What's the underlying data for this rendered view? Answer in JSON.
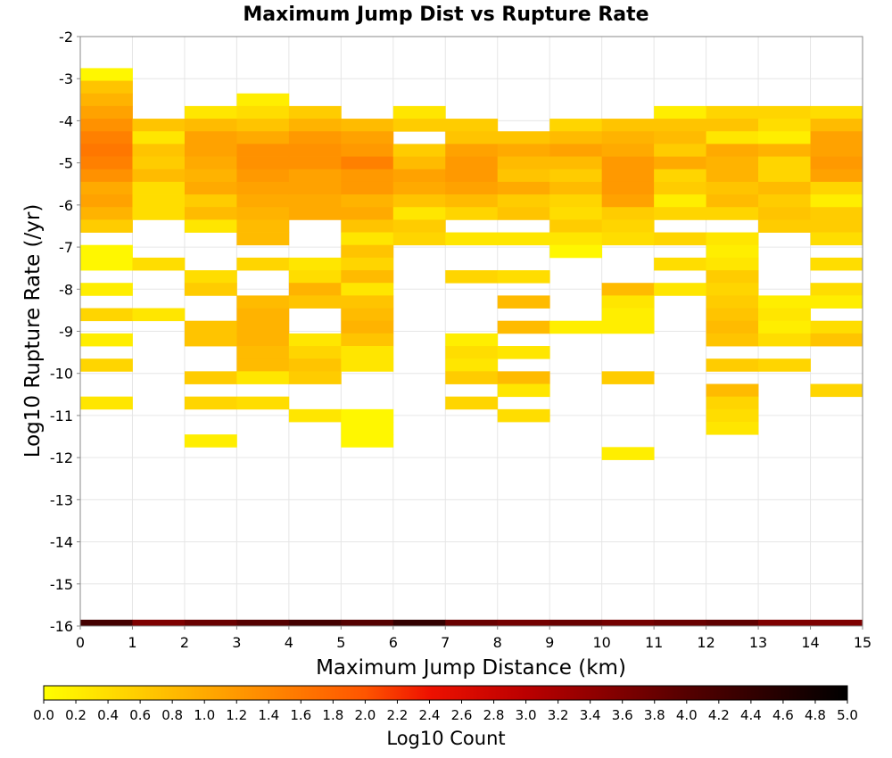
{
  "chart_data": {
    "type": "heatmap",
    "title": "Maximum Jump Dist vs Rupture Rate",
    "xlabel": "Maximum Jump Distance (km)",
    "ylabel": "Log10 Rupture Rate (/yr)",
    "xlim": [
      0,
      15
    ],
    "ylim": [
      -16,
      -2
    ],
    "x_ticks": [
      "0",
      "1",
      "2",
      "3",
      "4",
      "5",
      "6",
      "7",
      "8",
      "9",
      "10",
      "11",
      "12",
      "13",
      "14",
      "15"
    ],
    "y_ticks": [
      "-2",
      "-3",
      "-4",
      "-5",
      "-6",
      "-7",
      "-8",
      "-9",
      "-10",
      "-11",
      "-12",
      "-13",
      "-14",
      "-15",
      "-16"
    ],
    "bin_width_x": 1,
    "bin_height_y": 0.3,
    "grid": true,
    "colorbar": {
      "label": "Log10 Count",
      "range": [
        0,
        5
      ],
      "ticks": [
        "0.0",
        "0.2",
        "0.4",
        "0.6",
        "0.8",
        "1.0",
        "1.2",
        "1.4",
        "1.6",
        "1.8",
        "2.0",
        "2.2",
        "2.4",
        "2.6",
        "2.8",
        "3.0",
        "3.2",
        "3.4",
        "3.6",
        "3.8",
        "4.0",
        "4.2",
        "4.4",
        "4.6",
        "4.8",
        "5.0"
      ],
      "stops": [
        {
          "v": 0.0,
          "color": "#ffff00"
        },
        {
          "v": 1.0,
          "color": "#ffaa00"
        },
        {
          "v": 2.0,
          "color": "#ff5500"
        },
        {
          "v": 2.4,
          "color": "#ee1100"
        },
        {
          "v": 3.0,
          "color": "#bb0000"
        },
        {
          "v": 4.0,
          "color": "#550000"
        },
        {
          "v": 5.0,
          "color": "#000000"
        }
      ]
    },
    "columns": [
      {
        "x": 0,
        "cells": [
          [
            -2.9,
            0.1
          ],
          [
            -3.2,
            0.7
          ],
          [
            -3.5,
            0.9
          ],
          [
            -3.8,
            1.1
          ],
          [
            -4.1,
            1.3
          ],
          [
            -4.4,
            1.5
          ],
          [
            -4.7,
            1.6
          ],
          [
            -5.0,
            1.5
          ],
          [
            -5.3,
            1.3
          ],
          [
            -5.6,
            1.0
          ],
          [
            -5.9,
            1.1
          ],
          [
            -6.2,
            0.9
          ],
          [
            -6.5,
            0.6
          ],
          [
            -7.1,
            0.1
          ],
          [
            -7.4,
            0.1
          ],
          [
            -8.0,
            0.2
          ],
          [
            -8.6,
            0.5
          ],
          [
            -9.2,
            0.2
          ],
          [
            -9.8,
            0.5
          ],
          [
            -10.7,
            0.3
          ]
        ]
      },
      {
        "x": 1,
        "cells": [
          [
            -4.1,
            0.7
          ],
          [
            -4.4,
            0.3
          ],
          [
            -4.7,
            0.7
          ],
          [
            -5.0,
            0.6
          ],
          [
            -5.3,
            0.8
          ],
          [
            -5.6,
            0.4
          ],
          [
            -5.9,
            0.4
          ],
          [
            -6.2,
            0.4
          ],
          [
            -7.4,
            0.4
          ],
          [
            -8.6,
            0.3
          ]
        ]
      },
      {
        "x": 2,
        "cells": [
          [
            -3.8,
            0.3
          ],
          [
            -4.1,
            0.8
          ],
          [
            -4.4,
            1.1
          ],
          [
            -4.7,
            1.1
          ],
          [
            -5.0,
            1.0
          ],
          [
            -5.3,
            0.9
          ],
          [
            -5.6,
            1.0
          ],
          [
            -5.9,
            0.6
          ],
          [
            -6.2,
            0.8
          ],
          [
            -6.5,
            0.3
          ],
          [
            -7.7,
            0.4
          ],
          [
            -8.0,
            0.6
          ],
          [
            -8.9,
            0.7
          ],
          [
            -9.2,
            0.7
          ],
          [
            -10.1,
            0.6
          ],
          [
            -10.7,
            0.5
          ],
          [
            -11.6,
            0.2
          ]
        ]
      },
      {
        "x": 3,
        "cells": [
          [
            -3.5,
            0.2
          ],
          [
            -3.8,
            0.4
          ],
          [
            -4.1,
            0.7
          ],
          [
            -4.4,
            1.0
          ],
          [
            -4.7,
            1.3
          ],
          [
            -5.0,
            1.3
          ],
          [
            -5.3,
            1.2
          ],
          [
            -5.6,
            1.1
          ],
          [
            -5.9,
            1.0
          ],
          [
            -6.2,
            0.9
          ],
          [
            -6.5,
            0.8
          ],
          [
            -6.8,
            0.8
          ],
          [
            -7.4,
            0.5
          ],
          [
            -8.3,
            0.8
          ],
          [
            -8.6,
            0.9
          ],
          [
            -8.9,
            0.9
          ],
          [
            -9.2,
            0.9
          ],
          [
            -9.5,
            0.8
          ],
          [
            -9.8,
            0.8
          ],
          [
            -10.1,
            0.3
          ],
          [
            -10.7,
            0.4
          ]
        ]
      },
      {
        "x": 4,
        "cells": [
          [
            -3.8,
            0.6
          ],
          [
            -4.1,
            0.9
          ],
          [
            -4.4,
            1.2
          ],
          [
            -4.7,
            1.3
          ],
          [
            -5.0,
            1.3
          ],
          [
            -5.3,
            1.1
          ],
          [
            -5.6,
            1.1
          ],
          [
            -5.9,
            1.0
          ],
          [
            -6.2,
            1.0
          ],
          [
            -7.4,
            0.3
          ],
          [
            -7.7,
            0.4
          ],
          [
            -8.0,
            0.9
          ],
          [
            -8.3,
            0.7
          ],
          [
            -9.2,
            0.3
          ],
          [
            -9.5,
            0.5
          ],
          [
            -9.8,
            0.7
          ],
          [
            -10.1,
            0.6
          ],
          [
            -11.0,
            0.3
          ]
        ]
      },
      {
        "x": 5,
        "cells": [
          [
            -4.1,
            0.8
          ],
          [
            -4.4,
            1.1
          ],
          [
            -4.7,
            1.2
          ],
          [
            -5.0,
            1.5
          ],
          [
            -5.3,
            1.2
          ],
          [
            -5.6,
            1.2
          ],
          [
            -5.9,
            0.9
          ],
          [
            -6.2,
            1.0
          ],
          [
            -6.5,
            0.7
          ],
          [
            -6.8,
            0.3
          ],
          [
            -7.1,
            0.7
          ],
          [
            -7.4,
            0.5
          ],
          [
            -7.7,
            0.8
          ],
          [
            -8.0,
            0.3
          ],
          [
            -8.3,
            0.7
          ],
          [
            -8.6,
            0.8
          ],
          [
            -8.9,
            0.9
          ],
          [
            -9.2,
            0.7
          ],
          [
            -9.5,
            0.3
          ],
          [
            -9.8,
            0.3
          ],
          [
            -11.0,
            0.1
          ],
          [
            -11.3,
            0.1
          ],
          [
            -11.6,
            0.1
          ]
        ]
      },
      {
        "x": 6,
        "cells": [
          [
            -3.8,
            0.3
          ],
          [
            -4.1,
            0.6
          ],
          [
            -4.7,
            0.6
          ],
          [
            -5.0,
            0.8
          ],
          [
            -5.3,
            1.1
          ],
          [
            -5.6,
            1.0
          ],
          [
            -5.9,
            0.7
          ],
          [
            -6.2,
            0.3
          ],
          [
            -6.5,
            0.6
          ],
          [
            -6.8,
            0.5
          ]
        ]
      },
      {
        "x": 7,
        "cells": [
          [
            -4.1,
            0.6
          ],
          [
            -4.4,
            0.7
          ],
          [
            -4.7,
            1.1
          ],
          [
            -5.0,
            1.2
          ],
          [
            -5.3,
            1.2
          ],
          [
            -5.6,
            1.1
          ],
          [
            -5.9,
            0.8
          ],
          [
            -6.2,
            0.5
          ],
          [
            -6.8,
            0.3
          ],
          [
            -7.7,
            0.5
          ],
          [
            -9.2,
            0.2
          ],
          [
            -9.5,
            0.4
          ],
          [
            -9.8,
            0.3
          ],
          [
            -10.1,
            0.6
          ],
          [
            -10.7,
            0.5
          ]
        ]
      },
      {
        "x": 8,
        "cells": [
          [
            -4.4,
            0.7
          ],
          [
            -4.7,
            1.0
          ],
          [
            -5.0,
            0.8
          ],
          [
            -5.3,
            0.7
          ],
          [
            -5.6,
            1.0
          ],
          [
            -5.9,
            0.6
          ],
          [
            -6.2,
            0.7
          ],
          [
            -6.8,
            0.3
          ],
          [
            -7.7,
            0.4
          ],
          [
            -8.3,
            0.8
          ],
          [
            -8.9,
            0.8
          ],
          [
            -9.5,
            0.3
          ],
          [
            -10.1,
            0.8
          ],
          [
            -10.4,
            0.3
          ],
          [
            -11.0,
            0.4
          ]
        ]
      },
      {
        "x": 9,
        "cells": [
          [
            -4.1,
            0.5
          ],
          [
            -4.4,
            0.8
          ],
          [
            -4.7,
            1.1
          ],
          [
            -5.0,
            0.8
          ],
          [
            -5.3,
            0.6
          ],
          [
            -5.6,
            0.8
          ],
          [
            -5.9,
            0.5
          ],
          [
            -6.2,
            0.4
          ],
          [
            -6.5,
            0.6
          ],
          [
            -6.8,
            0.3
          ],
          [
            -7.1,
            0.1
          ],
          [
            -8.9,
            0.2
          ]
        ]
      },
      {
        "x": 10,
        "cells": [
          [
            -4.1,
            0.7
          ],
          [
            -4.4,
            0.9
          ],
          [
            -4.7,
            1.0
          ],
          [
            -5.0,
            1.2
          ],
          [
            -5.3,
            1.2
          ],
          [
            -5.6,
            1.2
          ],
          [
            -5.9,
            1.1
          ],
          [
            -6.2,
            0.6
          ],
          [
            -6.5,
            0.5
          ],
          [
            -6.8,
            0.4
          ],
          [
            -8.0,
            0.8
          ],
          [
            -8.3,
            0.3
          ],
          [
            -8.6,
            0.2
          ],
          [
            -8.9,
            0.2
          ],
          [
            -10.1,
            0.6
          ],
          [
            -11.9,
            0.2
          ]
        ]
      },
      {
        "x": 11,
        "cells": [
          [
            -3.8,
            0.2
          ],
          [
            -4.1,
            0.7
          ],
          [
            -4.4,
            0.8
          ],
          [
            -4.7,
            0.6
          ],
          [
            -5.0,
            1.0
          ],
          [
            -5.3,
            0.5
          ],
          [
            -5.6,
            0.6
          ],
          [
            -5.9,
            0.2
          ],
          [
            -6.2,
            0.5
          ],
          [
            -6.8,
            0.5
          ],
          [
            -7.4,
            0.4
          ],
          [
            -8.0,
            0.3
          ]
        ]
      },
      {
        "x": 12,
        "cells": [
          [
            -3.8,
            0.5
          ],
          [
            -4.1,
            0.7
          ],
          [
            -4.4,
            0.3
          ],
          [
            -4.7,
            1.0
          ],
          [
            -5.0,
            0.9
          ],
          [
            -5.3,
            0.9
          ],
          [
            -5.6,
            0.7
          ],
          [
            -5.9,
            0.8
          ],
          [
            -6.2,
            0.5
          ],
          [
            -6.8,
            0.3
          ],
          [
            -7.1,
            0.2
          ],
          [
            -7.4,
            0.3
          ],
          [
            -7.7,
            0.6
          ],
          [
            -8.0,
            0.5
          ],
          [
            -8.3,
            0.6
          ],
          [
            -8.6,
            0.7
          ],
          [
            -8.9,
            0.8
          ],
          [
            -9.2,
            0.7
          ],
          [
            -9.8,
            0.6
          ],
          [
            -10.4,
            0.8
          ],
          [
            -10.7,
            0.5
          ],
          [
            -11.0,
            0.4
          ],
          [
            -11.3,
            0.3
          ]
        ]
      },
      {
        "x": 13,
        "cells": [
          [
            -3.8,
            0.5
          ],
          [
            -4.1,
            0.4
          ],
          [
            -4.4,
            0.2
          ],
          [
            -4.7,
            0.9
          ],
          [
            -5.0,
            0.5
          ],
          [
            -5.3,
            0.5
          ],
          [
            -5.6,
            0.8
          ],
          [
            -5.9,
            0.6
          ],
          [
            -6.2,
            0.7
          ],
          [
            -6.5,
            0.6
          ],
          [
            -8.3,
            0.2
          ],
          [
            -8.6,
            0.3
          ],
          [
            -8.9,
            0.2
          ],
          [
            -9.2,
            0.4
          ],
          [
            -9.8,
            0.5
          ]
        ]
      },
      {
        "x": 14,
        "cells": [
          [
            -3.8,
            0.4
          ],
          [
            -4.1,
            0.8
          ],
          [
            -4.4,
            1.1
          ],
          [
            -4.7,
            1.1
          ],
          [
            -5.0,
            1.2
          ],
          [
            -5.3,
            1.1
          ],
          [
            -5.6,
            0.5
          ],
          [
            -5.9,
            0.2
          ],
          [
            -6.2,
            0.6
          ],
          [
            -6.5,
            0.6
          ],
          [
            -6.8,
            0.4
          ],
          [
            -7.4,
            0.4
          ],
          [
            -8.0,
            0.4
          ],
          [
            -8.3,
            0.2
          ],
          [
            -8.9,
            0.4
          ],
          [
            -9.2,
            0.7
          ],
          [
            -10.4,
            0.5
          ]
        ]
      }
    ],
    "bottom_row": {
      "y": -16,
      "values": [
        4.2,
        3.6,
        3.8,
        4.0,
        4.2,
        4.0,
        4.4,
        3.8,
        3.7,
        3.8,
        3.7,
        3.8,
        3.9,
        3.6,
        3.6
      ]
    }
  }
}
